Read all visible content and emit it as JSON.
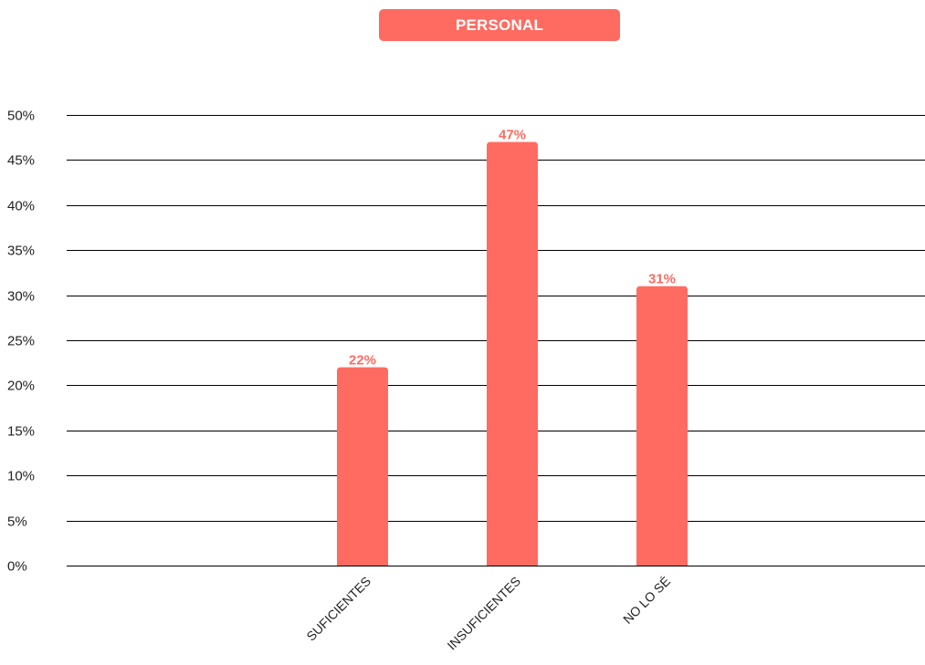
{
  "colors": {
    "bar": "#ff6b61",
    "label": "#ff6b61",
    "grid": "#000000",
    "axis_text": "#222222"
  },
  "chart_data": {
    "type": "bar",
    "title": "PERSONAL",
    "categories": [
      "SUFICIENTES",
      "INSUFICIENTES",
      "NO LO SÉ"
    ],
    "values": [
      22,
      47,
      31
    ],
    "value_labels": [
      "22%",
      "47%",
      "31%"
    ],
    "ylim": [
      0,
      50
    ],
    "yticks": [
      0,
      5,
      10,
      15,
      20,
      25,
      30,
      35,
      40,
      45,
      50
    ],
    "ytick_labels": [
      "0%",
      "5%",
      "10%",
      "15%",
      "20%",
      "25%",
      "30%",
      "35%",
      "40%",
      "45%",
      "50%"
    ],
    "xlabel": "",
    "ylabel": "",
    "grid": true,
    "legend": "none"
  }
}
